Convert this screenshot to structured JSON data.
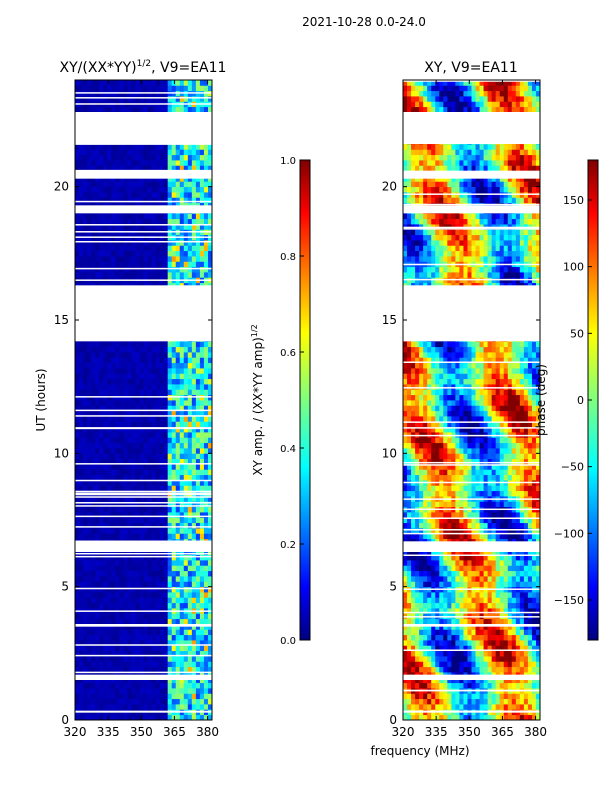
{
  "figure_title": "2021-10-28 0.0-24.0",
  "xlabel": "frequency (MHz)",
  "colors": {
    "background": "#ffffff",
    "amp_base": "#00007f"
  },
  "chart_data": [
    {
      "type": "heatmap",
      "title_main": "XY/(XX*YY)",
      "title_sup": "1/2",
      "title_suffix": ", V9=EA11",
      "xlabel": "frequency (MHz)",
      "ylabel": "UT (hours)",
      "xlim": [
        320,
        382
      ],
      "ylim": [
        0,
        24
      ],
      "xticks": [
        320,
        335,
        350,
        365,
        380
      ],
      "yticks": [
        0,
        5,
        10,
        15,
        20
      ],
      "colorbar": {
        "label_main": "XY amp. / (XX*YY amp)",
        "label_sup": "1/2",
        "range": [
          0.0,
          1.0
        ],
        "ticks": [
          "0.0",
          "0.2",
          "0.4",
          "0.6",
          "0.8",
          "1.0"
        ],
        "colormap": "jet"
      },
      "data_gaps_hours": [
        [
          0.3,
          0.35
        ],
        [
          1.5,
          1.7
        ],
        [
          3.5,
          3.6
        ],
        [
          6.3,
          6.7
        ],
        [
          14.2,
          16.3
        ],
        [
          19.0,
          19.3
        ],
        [
          20.3,
          20.6
        ],
        [
          21.6,
          22.8
        ]
      ]
    },
    {
      "type": "heatmap",
      "title": "XY, V9=EA11",
      "xlim": [
        320,
        382
      ],
      "ylim": [
        0,
        24
      ],
      "xticks": [
        320,
        335,
        350,
        365,
        380
      ],
      "yticks": [
        0,
        5,
        10,
        15,
        20
      ],
      "colorbar": {
        "label": "phase (deg)",
        "range": [
          -180,
          180
        ],
        "ticks": [
          "150",
          "100",
          "50",
          "0",
          "−50",
          "−100",
          "−150"
        ],
        "colormap": "jet"
      },
      "data_gaps_hours": [
        [
          0.3,
          0.35
        ],
        [
          1.5,
          1.7
        ],
        [
          3.5,
          3.6
        ],
        [
          6.3,
          6.7
        ],
        [
          14.2,
          16.3
        ],
        [
          19.0,
          19.3
        ],
        [
          20.3,
          20.6
        ],
        [
          21.6,
          22.8
        ]
      ]
    }
  ]
}
